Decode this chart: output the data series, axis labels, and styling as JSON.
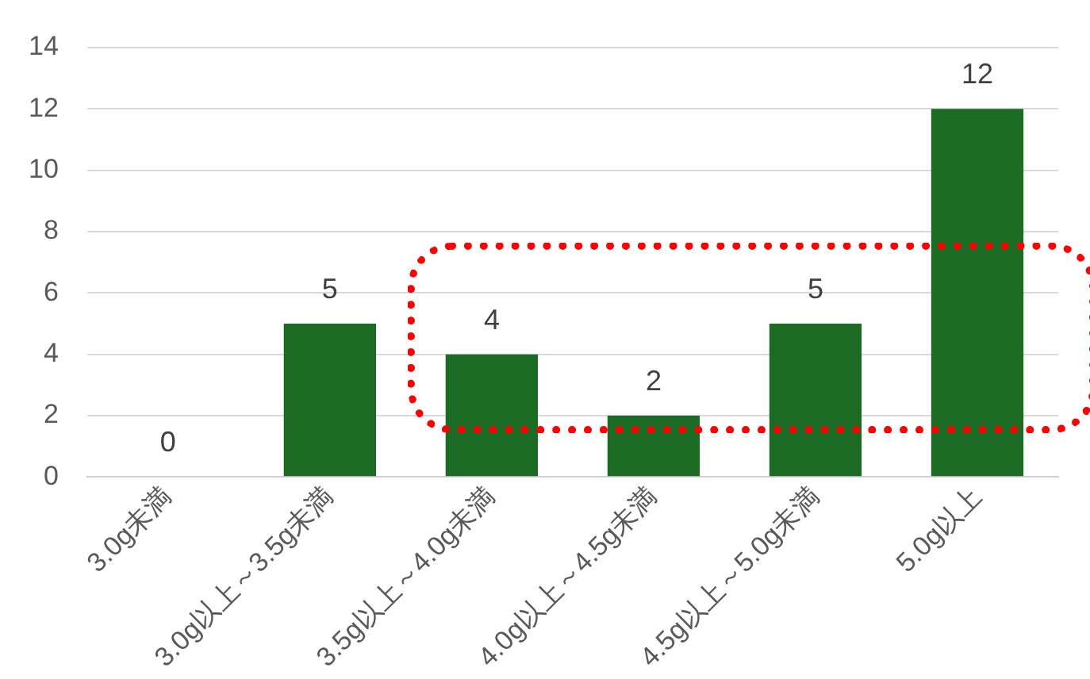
{
  "chart_data": {
    "type": "bar",
    "categories": [
      "3.0g未満",
      "3.0g以上～3.5g未満",
      "3.5g以上～4.0g未満",
      "4.0g以上～4.5g未満",
      "4.5g以上～5.0g未満",
      "5.0g以上"
    ],
    "values": [
      0,
      5,
      4,
      2,
      5,
      12
    ],
    "color": "#1b6b24",
    "ylim": [
      0,
      14
    ],
    "yticks": [
      0,
      2,
      4,
      6,
      8,
      10,
      12,
      14
    ],
    "grid": "y",
    "data_labels": true
  }
}
